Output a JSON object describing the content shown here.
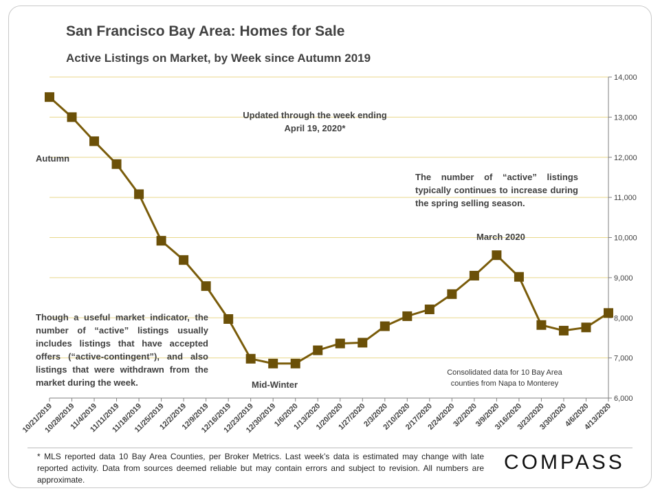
{
  "header": {
    "title": "San Francisco Bay Area: Homes for Sale",
    "subtitle": "Active Listings on Market, by Week since Autumn 2019"
  },
  "annotations": {
    "updated": "Updated through the week ending April 19, 2020*",
    "autumn": "Autumn",
    "spring_note": "The number of “active” listings typically continues to increase during the spring selling season.",
    "march": "March 2020",
    "indicator_note": "Though a useful market indicator, the number of “active” listings usually includes listings that have accepted offers (“active-contingent”), and also listings that were withdrawn from the market during the week.",
    "midwinter": "Mid-Winter",
    "consolidated": "Consolidated data for 10 Bay Area counties from Napa to Monterey"
  },
  "footnote": "* MLS reported data 10 Bay Area Counties, per Broker Metrics. Last week’s data is estimated may change with late reported activity. Data from sources deemed reliable but may contain errors and subject to revision. All numbers are approximate.",
  "logo": "COMPASS",
  "colors": {
    "line": "#7a5c0a",
    "marker": "#6b5008",
    "grid": "#e8d78a",
    "axis": "#7f7f7f"
  },
  "chart_data": {
    "type": "line",
    "title": "Active Listings on Market, by Week since Autumn 2019",
    "categories": [
      "10/21/2019",
      "10/28/2019",
      "11/4/2019",
      "11/11/2019",
      "11/18/2019",
      "11/25/2019",
      "12/2/2019",
      "12/9/2019",
      "12/16/2019",
      "12/23/2019",
      "12/30/2019",
      "1/6/2020",
      "1/13/2020",
      "1/20/2020",
      "1/27/2020",
      "2/3/2020",
      "2/10/2020",
      "2/17/2020",
      "2/24/2020",
      "3/2/2020",
      "3/9/2020",
      "3/16/2020",
      "3/23/2020",
      "3/30/2020",
      "4/6/2020",
      "4/13/2020"
    ],
    "values": [
      13500,
      13000,
      12400,
      11830,
      11080,
      9920,
      9440,
      8790,
      7970,
      6980,
      6860,
      6860,
      7190,
      7360,
      7380,
      7790,
      8040,
      8210,
      8590,
      9050,
      9560,
      9020,
      7820,
      7680,
      7760,
      8120
    ],
    "ylim": [
      6000,
      14000
    ],
    "yticks": [
      6000,
      7000,
      8000,
      9000,
      10000,
      11000,
      12000,
      13000,
      14000
    ],
    "ytick_labels": [
      "6,000",
      "7,000",
      "8,000",
      "9,000",
      "10,000",
      "11,000",
      "12,000",
      "13,000",
      "14,000"
    ],
    "y_axis_side": "right",
    "grid": true,
    "xlabel": "",
    "ylabel": ""
  }
}
